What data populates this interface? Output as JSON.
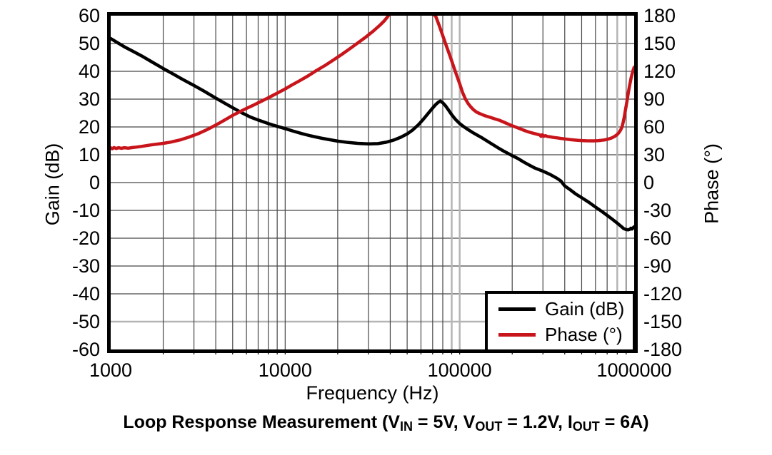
{
  "figure": {
    "background": "#ffffff",
    "title_parts": [
      {
        "text": "Loop Response Measurement (V"
      },
      {
        "text": "IN",
        "sub": true
      },
      {
        "text": " = 5V, V"
      },
      {
        "text": "OUT",
        "sub": true
      },
      {
        "text": " = 1.2V, I"
      },
      {
        "text": "OUT",
        "sub": true
      },
      {
        "text": " = 6A)"
      }
    ]
  },
  "axes": {
    "x": {
      "label": "Frequency (Hz)",
      "scale": "log",
      "min": 1000,
      "max": 1000000,
      "tick_values": [
        1000,
        10000,
        100000,
        1000000
      ],
      "tick_labels": [
        "1000",
        "10000",
        "100000",
        "1000000"
      ]
    },
    "y_left": {
      "label": "Gain (dB)",
      "min": -60,
      "max": 60,
      "tick_values": [
        60,
        50,
        40,
        30,
        20,
        10,
        0,
        -10,
        -20,
        -30,
        -40,
        -50,
        -60
      ]
    },
    "y_right": {
      "label": "Phase (°)",
      "min": -180,
      "max": 180,
      "tick_values": [
        180,
        150,
        120,
        90,
        60,
        30,
        0,
        -30,
        -60,
        -90,
        -120,
        -150,
        -180
      ]
    }
  },
  "grid": {
    "line_color": "#474747",
    "highlight_color": "#b5b5b5",
    "border_color": "#000000",
    "highlight_vertical_hz": [
      90000,
      100000,
      800000
    ],
    "highlight_horizontal_gain_db": [
      -50
    ]
  },
  "legend": {
    "position": "bottom-right",
    "items": [
      {
        "label": "Gain (dB)",
        "color": "#000000"
      },
      {
        "label": "Phase (°)",
        "color": "#c8151b"
      }
    ]
  },
  "chart_data": {
    "type": "line",
    "title": "Loop Response Measurement (VIN = 5V, VOUT = 1.2V, IOUT = 6A)",
    "xlabel": "Frequency (Hz)",
    "x_scale": "log",
    "x_range_hz": [
      1000,
      1000000
    ],
    "ylabel_left": "Gain (dB)",
    "ylim_left": [
      -60,
      60
    ],
    "ylabel_right": "Phase (°)",
    "ylim_right": [
      -180,
      180
    ],
    "grid": true,
    "legend_position": "bottom-right",
    "notes": "Phase trace exceeds +180° (off-scale) between ~38 kHz and ~73 kHz. Gain crossover (0 dB) ≈ 390 kHz with ~47° phase margin. Gain peak ≈ 29 dB near 77 kHz.",
    "series": [
      {
        "name": "Gain (dB)",
        "axis": "left",
        "color": "#000000",
        "points": [
          [
            1000,
            51.8
          ],
          [
            1100,
            50.2
          ],
          [
            1200,
            48.8
          ],
          [
            1350,
            47.1
          ],
          [
            1500,
            45.6
          ],
          [
            1700,
            43.6
          ],
          [
            2000,
            41.0
          ],
          [
            2300,
            38.9
          ],
          [
            2600,
            37.0
          ],
          [
            3000,
            34.9
          ],
          [
            3400,
            33.0
          ],
          [
            3900,
            30.8
          ],
          [
            4400,
            28.9
          ],
          [
            5000,
            26.9
          ],
          [
            5600,
            25.2
          ],
          [
            6300,
            23.6
          ],
          [
            7000,
            22.5
          ],
          [
            8000,
            21.2
          ],
          [
            9000,
            20.2
          ],
          [
            10000,
            19.4
          ],
          [
            11000,
            18.6
          ],
          [
            12500,
            17.6
          ],
          [
            14000,
            16.8
          ],
          [
            16000,
            16.0
          ],
          [
            18000,
            15.4
          ],
          [
            20000,
            14.9
          ],
          [
            23000,
            14.4
          ],
          [
            26000,
            14.1
          ],
          [
            30000,
            13.9
          ],
          [
            34000,
            14.0
          ],
          [
            38000,
            14.5
          ],
          [
            42000,
            15.3
          ],
          [
            46000,
            16.3
          ],
          [
            50000,
            17.5
          ],
          [
            54000,
            19.0
          ],
          [
            58000,
            20.8
          ],
          [
            62000,
            22.8
          ],
          [
            66000,
            24.9
          ],
          [
            70000,
            26.8
          ],
          [
            73000,
            28.1
          ],
          [
            75500,
            28.9
          ],
          [
            77500,
            29.3
          ],
          [
            80000,
            28.7
          ],
          [
            83000,
            27.6
          ],
          [
            86000,
            26.2
          ],
          [
            90000,
            24.4
          ],
          [
            95000,
            22.6
          ],
          [
            100000,
            21.2
          ],
          [
            105000,
            20.2
          ],
          [
            110000,
            19.3
          ],
          [
            118000,
            18.1
          ],
          [
            125000,
            17.2
          ],
          [
            135000,
            16.0
          ],
          [
            150000,
            14.2
          ],
          [
            165000,
            12.6
          ],
          [
            180000,
            11.2
          ],
          [
            200000,
            9.7
          ],
          [
            215000,
            8.7
          ],
          [
            230000,
            7.6
          ],
          [
            250000,
            6.3
          ],
          [
            270000,
            5.2
          ],
          [
            300000,
            4.1
          ],
          [
            330000,
            2.9
          ],
          [
            360000,
            1.6
          ],
          [
            380000,
            0.6
          ],
          [
            400000,
            -1.2
          ],
          [
            430000,
            -2.6
          ],
          [
            460000,
            -4.0
          ],
          [
            500000,
            -5.4
          ],
          [
            550000,
            -7.1
          ],
          [
            600000,
            -8.8
          ],
          [
            650000,
            -10.3
          ],
          [
            700000,
            -11.8
          ],
          [
            750000,
            -13.2
          ],
          [
            800000,
            -14.6
          ],
          [
            840000,
            -15.7
          ],
          [
            870000,
            -16.5
          ],
          [
            900000,
            -16.9
          ],
          [
            925000,
            -17.0
          ],
          [
            945000,
            -16.8
          ],
          [
            958000,
            -16.4
          ],
          [
            972000,
            -16.7
          ],
          [
            985000,
            -16.3
          ],
          [
            1000000,
            -15.9
          ]
        ]
      },
      {
        "name": "Phase (°)",
        "axis": "right",
        "color": "#c8151b",
        "points": [
          [
            1000,
            37.5
          ],
          [
            1020,
            36.5
          ],
          [
            1045,
            37.8
          ],
          [
            1075,
            36.8
          ],
          [
            1110,
            37.6
          ],
          [
            1150,
            36.9
          ],
          [
            1200,
            37.6
          ],
          [
            1260,
            37.1
          ],
          [
            1330,
            37.8
          ],
          [
            1400,
            38.2
          ],
          [
            1500,
            39.0
          ],
          [
            1700,
            40.6
          ],
          [
            2000,
            42.3
          ],
          [
            2200,
            43.6
          ],
          [
            2500,
            46.0
          ],
          [
            2800,
            48.9
          ],
          [
            3200,
            53.0
          ],
          [
            3600,
            57.5
          ],
          [
            4000,
            62.0
          ],
          [
            4500,
            67.5
          ],
          [
            5000,
            72.5
          ],
          [
            5500,
            76.5
          ],
          [
            6000,
            80.0
          ],
          [
            6500,
            83.0
          ],
          [
            7000,
            86.0
          ],
          [
            8000,
            91.5
          ],
          [
            9000,
            96.5
          ],
          [
            10000,
            101.0
          ],
          [
            11000,
            105.5
          ],
          [
            12000,
            109.5
          ],
          [
            13500,
            115.0
          ],
          [
            15000,
            120.5
          ],
          [
            17000,
            126.5
          ],
          [
            19000,
            132.5
          ],
          [
            21000,
            138.0
          ],
          [
            23500,
            144.5
          ],
          [
            26000,
            150.5
          ],
          [
            29000,
            157.0
          ],
          [
            32000,
            163.5
          ],
          [
            35000,
            170.0
          ],
          [
            37000,
            174.5
          ],
          [
            38500,
            178.5
          ],
          [
            40000,
            183.0
          ],
          [
            44000,
            196.0
          ],
          [
            50000,
            208.0
          ],
          [
            56000,
            212.0
          ],
          [
            62000,
            204.0
          ],
          [
            66000,
            195.0
          ],
          [
            69500,
            186.0
          ],
          [
            71500,
            181.0
          ],
          [
            73000,
            179.0
          ],
          [
            76000,
            170.5
          ],
          [
            80000,
            158.5
          ],
          [
            84000,
            147.0
          ],
          [
            88000,
            136.5
          ],
          [
            92000,
            126.0
          ],
          [
            96000,
            116.0
          ],
          [
            100000,
            106.5
          ],
          [
            104000,
            97.0
          ],
          [
            108000,
            90.0
          ],
          [
            112000,
            85.0
          ],
          [
            116000,
            81.5
          ],
          [
            120000,
            78.5
          ],
          [
            125000,
            76.0
          ],
          [
            130000,
            74.5
          ],
          [
            140000,
            72.0
          ],
          [
            150000,
            70.3
          ],
          [
            160000,
            68.5
          ],
          [
            170000,
            67.0
          ],
          [
            180000,
            65.0
          ],
          [
            190000,
            63.0
          ],
          [
            200000,
            61.3
          ],
          [
            212000,
            59.5
          ],
          [
            225000,
            57.6
          ],
          [
            238000,
            55.8
          ],
          [
            252000,
            54.2
          ],
          [
            266000,
            53.0
          ],
          [
            280000,
            52.0
          ],
          [
            288000,
            51.4
          ],
          [
            293000,
            49.8
          ],
          [
            298000,
            51.6
          ],
          [
            304000,
            49.9
          ],
          [
            310000,
            50.6
          ],
          [
            318000,
            49.8
          ],
          [
            330000,
            49.3
          ],
          [
            345000,
            48.7
          ],
          [
            362000,
            48.2
          ],
          [
            380000,
            47.6
          ],
          [
            400000,
            47.1
          ],
          [
            425000,
            46.5
          ],
          [
            450000,
            46.0
          ],
          [
            475000,
            45.6
          ],
          [
            500000,
            45.3
          ],
          [
            530000,
            45.1
          ],
          [
            560000,
            45.0
          ],
          [
            590000,
            45.0
          ],
          [
            620000,
            45.2
          ],
          [
            650000,
            45.6
          ],
          [
            680000,
            46.1
          ],
          [
            710000,
            46.9
          ],
          [
            740000,
            48.0
          ],
          [
            770000,
            49.6
          ],
          [
            795000,
            51.5
          ],
          [
            815000,
            53.5
          ],
          [
            835000,
            56.5
          ],
          [
            852000,
            60.0
          ],
          [
            865000,
            65.0
          ],
          [
            878000,
            71.0
          ],
          [
            890000,
            77.5
          ],
          [
            902000,
            84.0
          ],
          [
            914000,
            90.5
          ],
          [
            926000,
            97.0
          ],
          [
            938000,
            103.0
          ],
          [
            950000,
            108.5
          ],
          [
            962000,
            113.5
          ],
          [
            974000,
            117.5
          ],
          [
            986000,
            121.0
          ],
          [
            1000000,
            124.5
          ]
        ]
      }
    ]
  }
}
